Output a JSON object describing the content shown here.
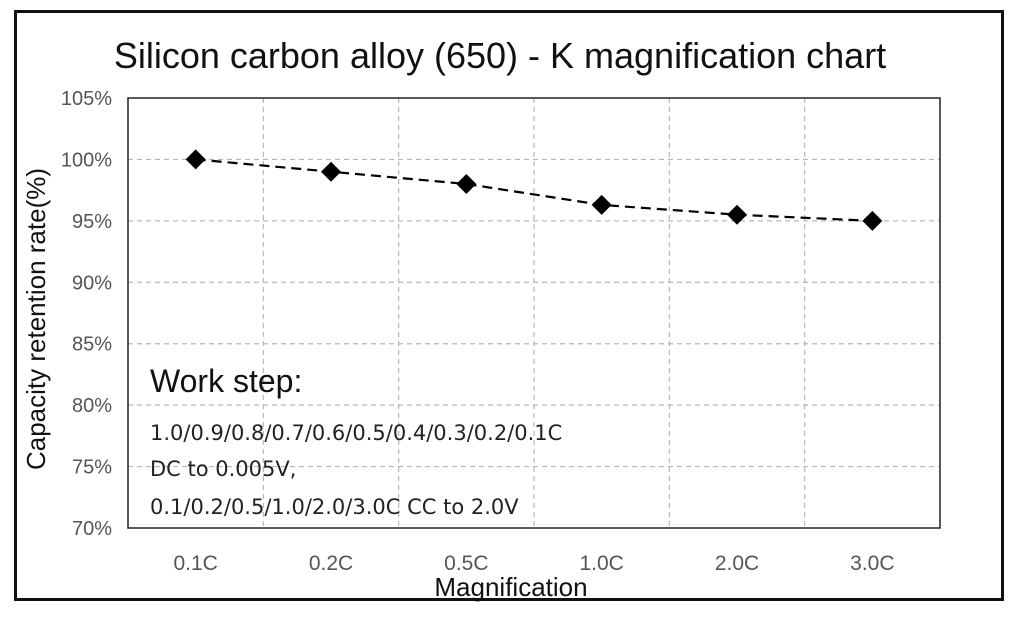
{
  "chart_data": {
    "type": "line",
    "title": "Silicon carbon alloy (650) - K magnification chart",
    "xlabel": "Magnification",
    "ylabel": "Capacity retention rate(%)",
    "categories": [
      "0.1C",
      "0.2C",
      "0.5C",
      "1.0C",
      "2.0C",
      "3.0C"
    ],
    "series": [
      {
        "values": [
          100.0,
          99.0,
          98.0,
          96.3,
          95.5,
          95.0
        ]
      }
    ],
    "ylim": [
      70,
      105
    ],
    "yticks": [
      70,
      75,
      80,
      85,
      90,
      95,
      100,
      105
    ],
    "ytick_labels": [
      "70%",
      "75%",
      "80%",
      "85%",
      "90%",
      "95%",
      "100%",
      "105%"
    ],
    "grid": true,
    "line_style": "dashed",
    "marker": "diamond",
    "colors": {
      "series": "#000000",
      "grid": "#b8b8b8",
      "frame": "#111111"
    },
    "annotation": {
      "heading": "Work step:",
      "lines": [
        "1.0/0.9/0.8/0.7/0.6/0.5/0.4/0.3/0.2/0.1C",
        "DC to 0.005V,",
        "0.1/0.2/0.5/1.0/2.0/3.0C CC to 2.0V"
      ]
    }
  }
}
